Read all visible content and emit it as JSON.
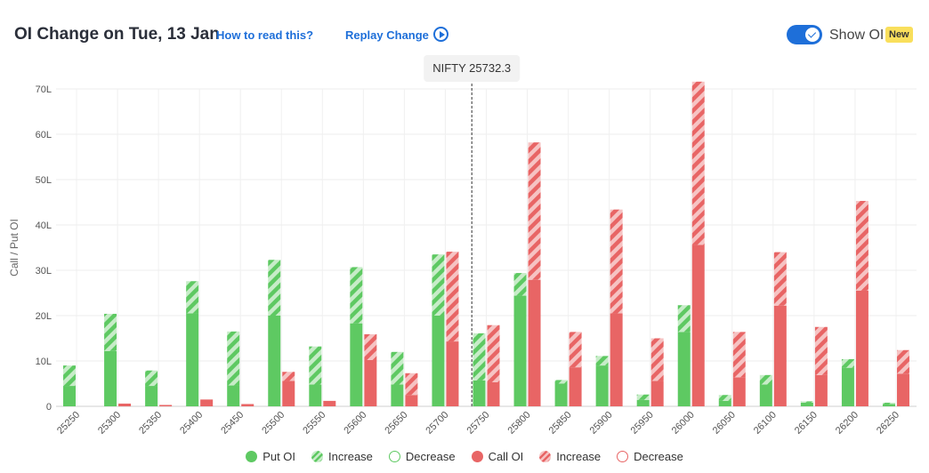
{
  "header": {
    "title": "OI Change on Tue, 13 Jan",
    "how_to_read": "How to read this?",
    "replay": "Replay Change",
    "show_oi": "Show OI",
    "badge": "New"
  },
  "colors": {
    "put": "#5ec962",
    "put_light": "#c7ecc8",
    "call": "#e86565",
    "call_light": "#f6c3c3",
    "accent": "#1e6fd9"
  },
  "chart_data": {
    "type": "bar",
    "ylabel": "Call / Put OI",
    "ylim": [
      0,
      70
    ],
    "yticks": [
      "0",
      "10L",
      "20L",
      "30L",
      "40L",
      "50L",
      "60L",
      "70L"
    ],
    "grid": true,
    "spot_label": "NIFTY 25732.3",
    "spot_value": 25732.3,
    "categories": [
      "25250",
      "25300",
      "25350",
      "25400",
      "25450",
      "25500",
      "25550",
      "25600",
      "25650",
      "25700",
      "25750",
      "25800",
      "25850",
      "25900",
      "25950",
      "26000",
      "26050",
      "26100",
      "26150",
      "26200",
      "26250"
    ],
    "series": [
      {
        "name": "Put OI",
        "values": [
          4.5,
          12.2,
          4.5,
          20.5,
          4.6,
          20.0,
          4.8,
          18.3,
          4.8,
          20.0,
          5.7,
          24.4,
          5.0,
          9.0,
          1.4,
          16.4,
          1.2,
          4.8,
          0.8,
          8.5,
          0.5
        ]
      },
      {
        "name": "Increase",
        "values": [
          4.5,
          8.2,
          3.4,
          7.1,
          11.9,
          12.3,
          8.4,
          12.4,
          7.2,
          13.5,
          10.4,
          5.0,
          0.8,
          2.1,
          1.2,
          5.9,
          1.3,
          2.1,
          0.3,
          1.9,
          0.3
        ]
      },
      {
        "name": "Call OI",
        "values": [
          0,
          0.6,
          0.3,
          1.5,
          0.5,
          5.6,
          1.2,
          10.2,
          2.5,
          14.3,
          5.3,
          27.9,
          8.6,
          20.5,
          5.6,
          35.6,
          6.4,
          22.2,
          6.9,
          25.5,
          7.2
        ]
      },
      {
        "name": "Increase",
        "values": [
          0,
          0,
          0,
          0,
          0,
          2.0,
          0,
          5.7,
          4.8,
          19.8,
          12.6,
          30.3,
          7.8,
          22.9,
          9.4,
          36.0,
          10.0,
          11.8,
          10.6,
          19.8,
          5.2
        ]
      }
    ]
  },
  "legend": {
    "put_oi": "Put OI",
    "put_increase": "Increase",
    "put_decrease": "Decrease",
    "call_oi": "Call OI",
    "call_increase": "Increase",
    "call_decrease": "Decrease"
  }
}
